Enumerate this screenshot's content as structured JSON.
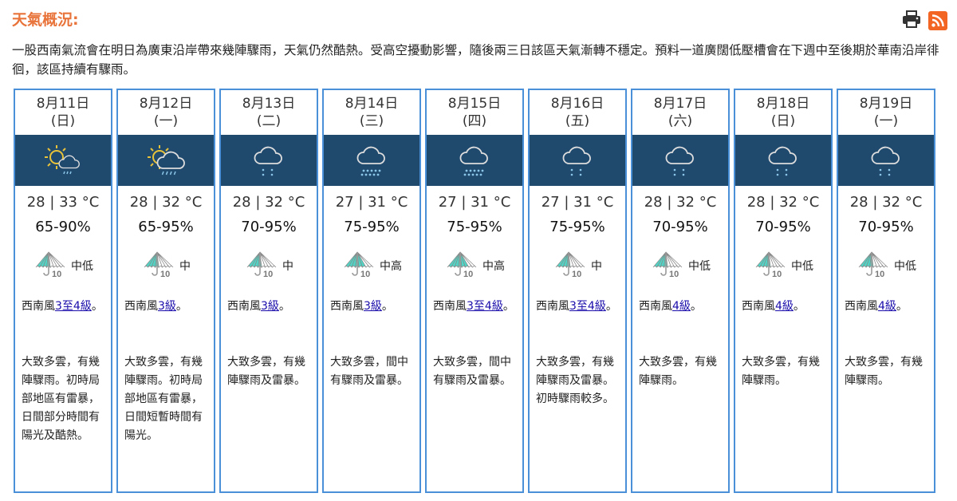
{
  "page": {
    "title": "天氣概況:",
    "print_icon": "printer-icon",
    "rss_icon": "rss-icon",
    "summary": "一股西南氣流會在明日為廣東沿岸帶來幾陣驟雨，天氣仍然酷熱。受高空擾動影響，隨後兩三日該區天氣漸轉不穩定。預料一道廣闊低壓槽會在下週中至後期於華南沿岸徘徊，該區持續有驟雨。"
  },
  "colors": {
    "accent": "#e8743b",
    "border": "#4a90d9",
    "band": "#1f4a6e",
    "umbrella": "#4fd6c6"
  },
  "days": [
    {
      "date": "8月11日",
      "weekday": "(日)",
      "icon": "sun-cloud-rain-icon",
      "temp": "28 | 33 °C",
      "humidity": "65-90%",
      "psr": "中低",
      "psr_fill": 0.4,
      "wind_pre": "西南風",
      "wind_link": "3至4級",
      "wind_post": "。",
      "desc": "大致多雲，有幾陣驟雨。初時局部地區有雷暴，日間部分時間有陽光及酷熱。"
    },
    {
      "date": "8月12日",
      "weekday": "(一)",
      "icon": "sun-cloud-rain-large-icon",
      "temp": "28 | 32 °C",
      "humidity": "65-95%",
      "psr": "中",
      "psr_fill": 0.5,
      "wind_pre": "西南風",
      "wind_link": "3級",
      "wind_post": "。",
      "desc": "大致多雲，有幾陣驟雨。初時局部地區有雷暴，日間短暫時間有陽光。"
    },
    {
      "date": "8月13日",
      "weekday": "(二)",
      "icon": "cloud-light-rain-icon",
      "temp": "28 | 32 °C",
      "humidity": "70-95%",
      "psr": "中",
      "psr_fill": 0.5,
      "wind_pre": "西南風",
      "wind_link": "3級",
      "wind_post": "。",
      "desc": "大致多雲，有幾陣驟雨及雷暴。"
    },
    {
      "date": "8月14日",
      "weekday": "(三)",
      "icon": "cloud-heavy-rain-icon",
      "temp": "27 | 31 °C",
      "humidity": "75-95%",
      "psr": "中高",
      "psr_fill": 0.7,
      "wind_pre": "西南風",
      "wind_link": "3級",
      "wind_post": "。",
      "desc": "大致多雲，間中有驟雨及雷暴。"
    },
    {
      "date": "8月15日",
      "weekday": "(四)",
      "icon": "cloud-heavy-rain-icon",
      "temp": "27 | 31 °C",
      "humidity": "75-95%",
      "psr": "中高",
      "psr_fill": 0.7,
      "wind_pre": "西南風",
      "wind_link": "3至4級",
      "wind_post": "。",
      "desc": "大致多雲，間中有驟雨及雷暴。"
    },
    {
      "date": "8月16日",
      "weekday": "(五)",
      "icon": "cloud-light-rain-icon",
      "temp": "27 | 31 °C",
      "humidity": "75-95%",
      "psr": "中",
      "psr_fill": 0.5,
      "wind_pre": "西南風",
      "wind_link": "3至4級",
      "wind_post": "。",
      "desc": "大致多雲，有幾陣驟雨及雷暴。初時驟雨較多。"
    },
    {
      "date": "8月17日",
      "weekday": "(六)",
      "icon": "cloud-light-rain-icon",
      "temp": "28 | 32 °C",
      "humidity": "70-95%",
      "psr": "中低",
      "psr_fill": 0.4,
      "wind_pre": "西南風",
      "wind_link": "4級",
      "wind_post": "。",
      "desc": "大致多雲，有幾陣驟雨。"
    },
    {
      "date": "8月18日",
      "weekday": "(日)",
      "icon": "cloud-light-rain-icon",
      "temp": "28 | 32 °C",
      "humidity": "70-95%",
      "psr": "中低",
      "psr_fill": 0.4,
      "wind_pre": "西南風",
      "wind_link": "4級",
      "wind_post": "。",
      "desc": "大致多雲，有幾陣驟雨。"
    },
    {
      "date": "8月19日",
      "weekday": "(一)",
      "icon": "cloud-light-rain-icon",
      "temp": "28 | 32 °C",
      "humidity": "70-95%",
      "psr": "中低",
      "psr_fill": 0.4,
      "wind_pre": "西南風",
      "wind_link": "4級",
      "wind_post": "。",
      "desc": "大致多雲，有幾陣驟雨。"
    }
  ]
}
